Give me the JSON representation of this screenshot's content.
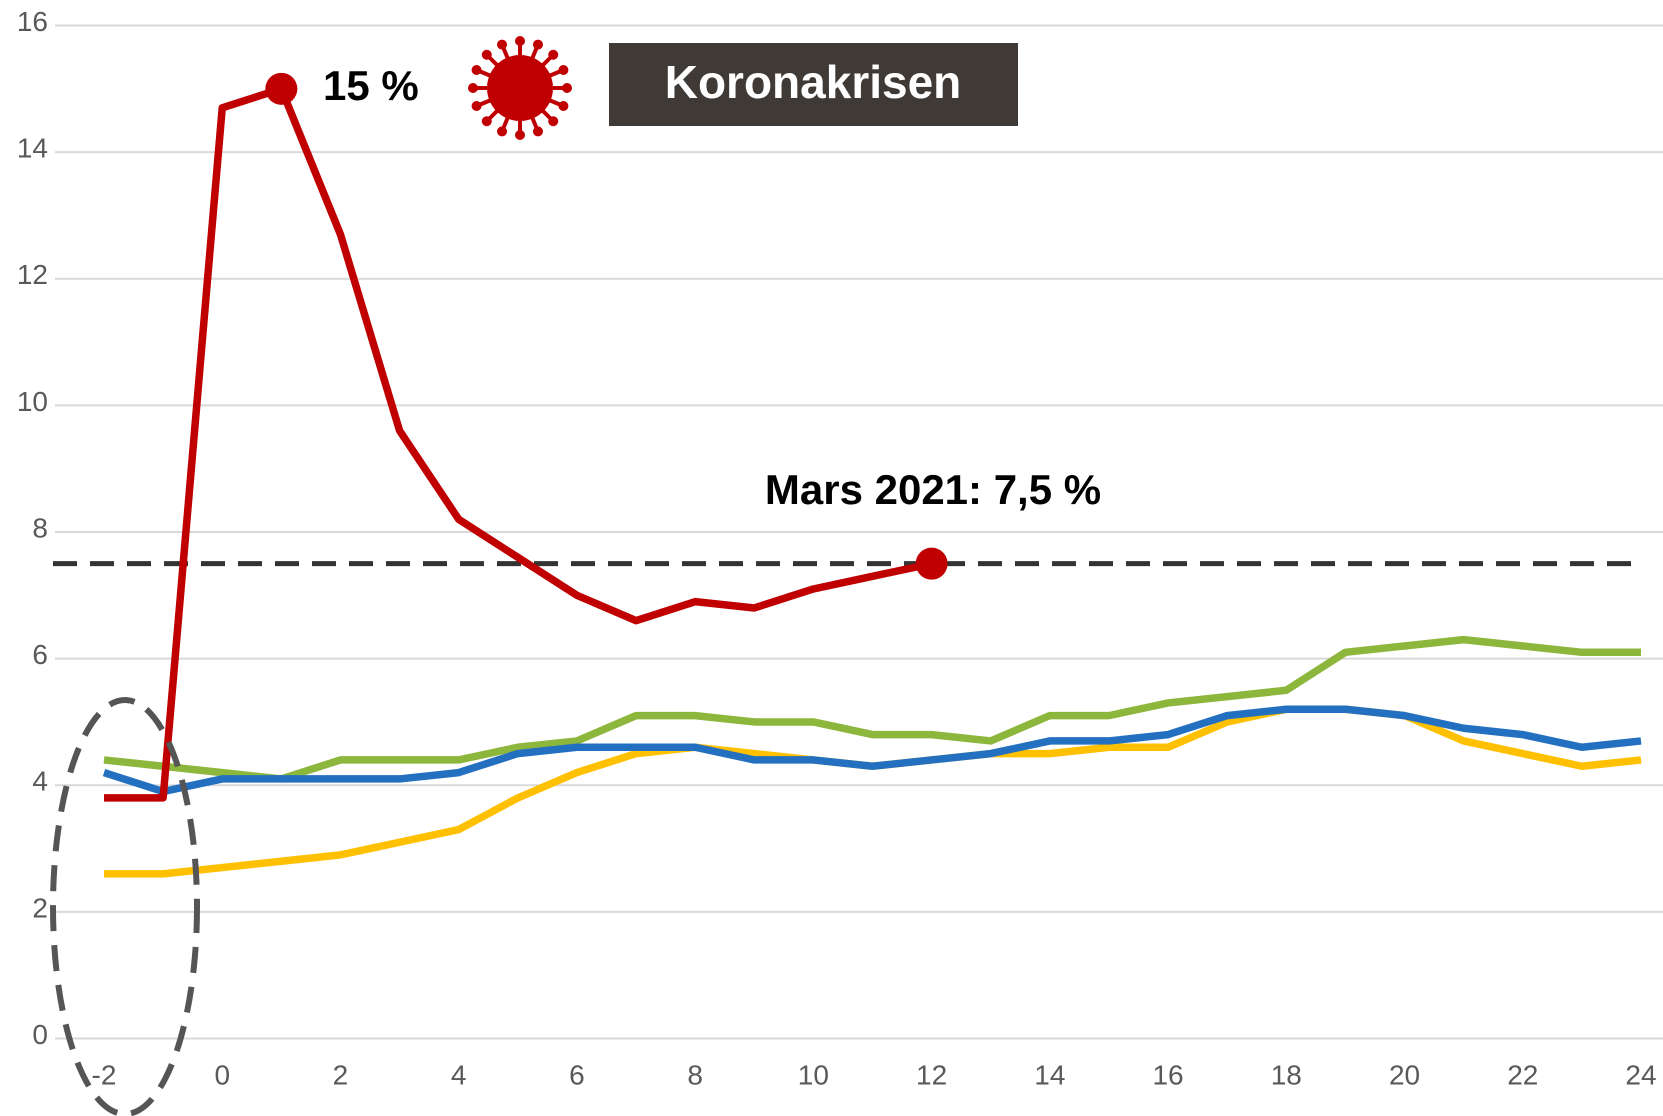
{
  "chart_data": {
    "type": "line",
    "x": [
      -2,
      -1,
      0,
      1,
      2,
      3,
      4,
      5,
      6,
      7,
      8,
      9,
      10,
      11,
      12,
      13,
      14,
      15,
      16,
      17,
      18,
      19,
      20,
      21,
      22,
      23,
      24
    ],
    "series": [
      {
        "color": "#ffc000",
        "values": [
          2.6,
          2.6,
          2.7,
          2.8,
          2.9,
          3.1,
          3.3,
          3.8,
          4.2,
          4.5,
          4.6,
          4.5,
          4.4,
          4.3,
          4.4,
          4.5,
          4.5,
          4.6,
          4.6,
          5.0,
          5.2,
          5.2,
          5.1,
          4.7,
          4.5,
          4.3,
          4.4
        ]
      },
      {
        "color": "#8db63c",
        "values": [
          4.4,
          4.3,
          4.2,
          4.1,
          4.4,
          4.4,
          4.4,
          4.6,
          4.7,
          5.1,
          5.1,
          5.0,
          5.0,
          4.8,
          4.8,
          4.7,
          5.1,
          5.1,
          5.3,
          5.4,
          5.5,
          6.1,
          6.2,
          6.3,
          6.2,
          6.1,
          6.1
        ]
      },
      {
        "color": "#2470c0",
        "values": [
          4.2,
          3.9,
          4.1,
          4.1,
          4.1,
          4.1,
          4.2,
          4.5,
          4.6,
          4.6,
          4.6,
          4.4,
          4.4,
          4.3,
          4.4,
          4.5,
          4.7,
          4.7,
          4.8,
          5.1,
          5.2,
          5.2,
          5.1,
          4.9,
          4.8,
          4.6,
          4.7
        ]
      },
      {
        "color": "#c00000",
        "values": [
          3.8,
          3.8,
          14.7,
          15,
          12.7,
          9.6,
          8.2,
          7.6,
          7.0,
          6.6,
          6.9,
          6.8,
          7.1,
          7.3,
          7.5,
          null,
          null,
          null,
          null,
          null,
          null,
          null,
          null,
          null,
          null,
          null,
          null
        ],
        "highlight_indices": [
          3,
          14
        ]
      }
    ],
    "reference_line": {
      "value": 7.5,
      "style": "dashed",
      "color": "#333333"
    },
    "annotations": [
      "15 %",
      "Koronakrisen",
      "Mars 2021: 7,5 %"
    ],
    "xlim": [
      -2,
      24
    ],
    "xticks": [
      -2,
      0,
      2,
      4,
      6,
      8,
      10,
      12,
      14,
      16,
      18,
      20,
      22,
      24
    ],
    "ylim": [
      0,
      16
    ],
    "yticks": [
      0,
      2,
      4,
      6,
      8,
      10,
      12,
      14,
      16
    ],
    "grid": true
  }
}
